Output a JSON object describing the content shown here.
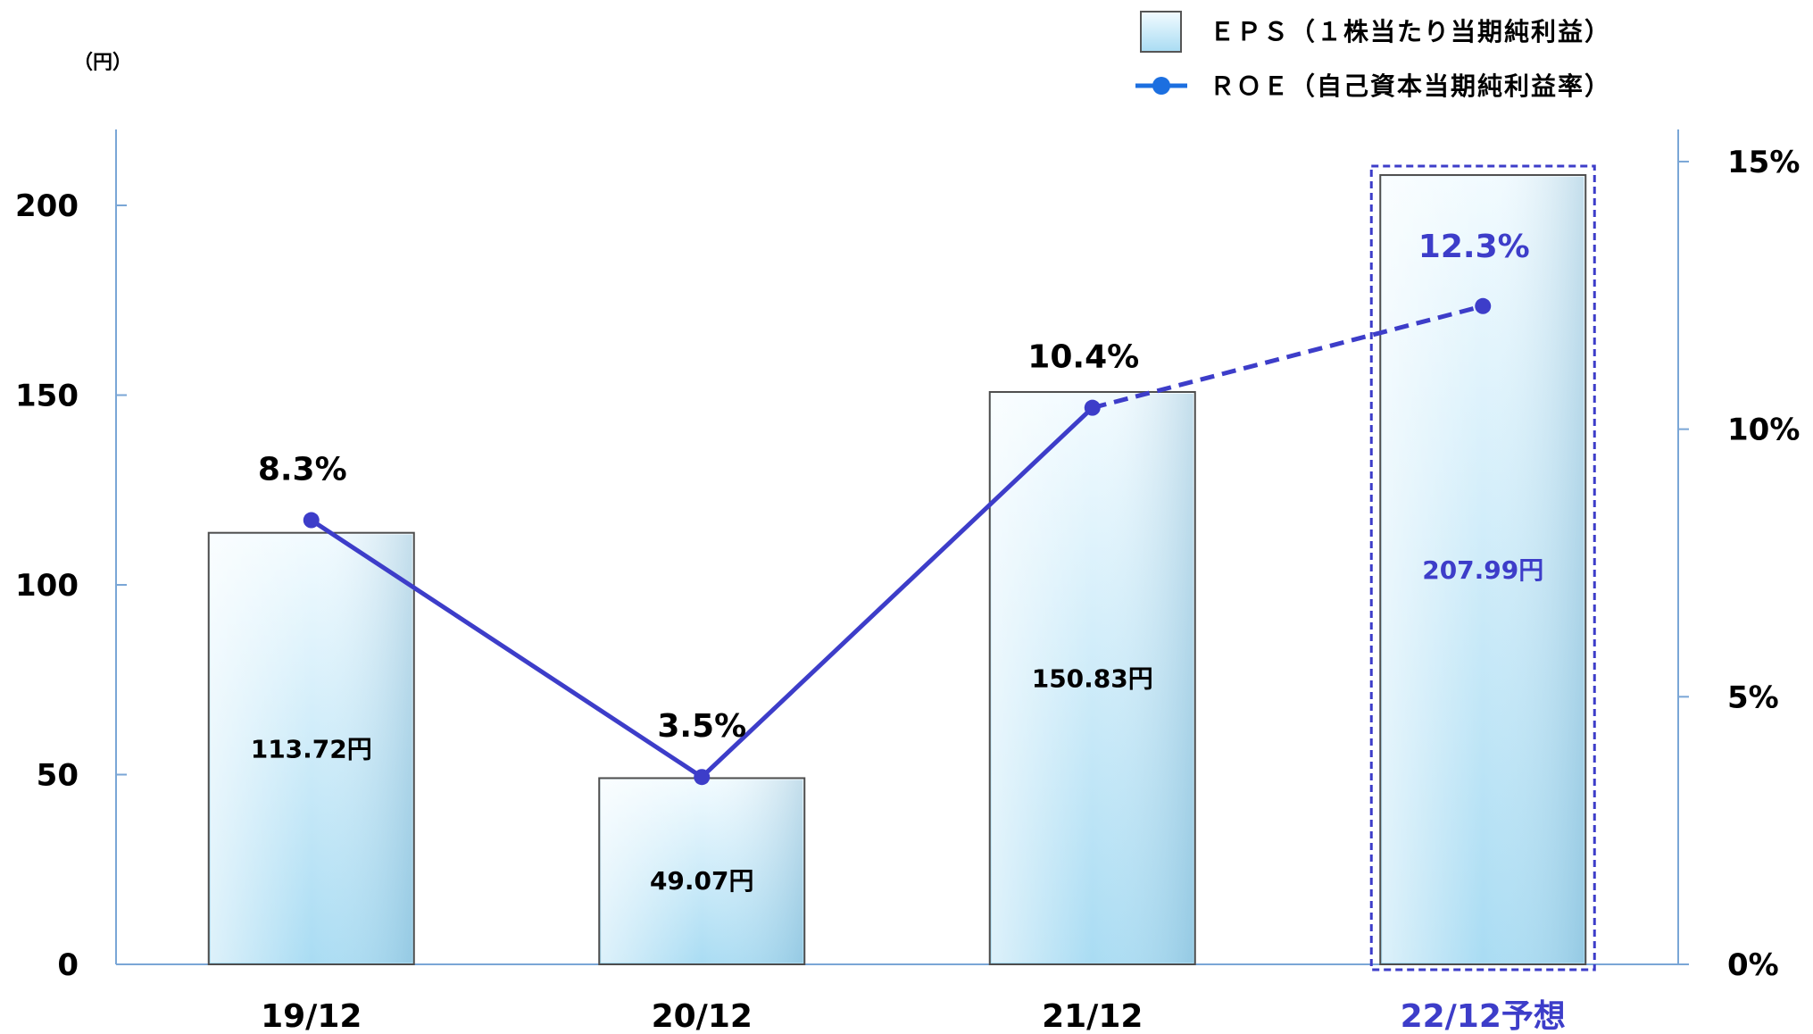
{
  "chart_data": {
    "type": "bar",
    "categories": [
      "19/12",
      "20/12",
      "21/12",
      "22/12予想"
    ],
    "y_unit_label": "（円）",
    "ylim": [
      0,
      220
    ],
    "yticks": [
      "0",
      "50",
      "100",
      "150",
      "200"
    ],
    "y2lim": [
      0,
      15.6
    ],
    "y2ticks": [
      "0%",
      "5%",
      "10%",
      "15%"
    ],
    "series": [
      {
        "name": "ＥＰＳ（１株当たり当期純利益）",
        "kind": "bar",
        "values": [
          113.72,
          49.07,
          150.83,
          207.99
        ],
        "labels": [
          "113.72円",
          "49.07円",
          "150.83円",
          "207.99円"
        ]
      },
      {
        "name": "ＲＯＥ（自己資本当期純利益率）",
        "kind": "line",
        "axis": "right",
        "values": [
          8.3,
          3.5,
          10.4,
          12.3
        ],
        "labels": [
          "8.3%",
          "3.5%",
          "10.4%",
          "12.3%"
        ]
      }
    ],
    "forecast_index": 3,
    "colors": {
      "bar_top": "#e8f6fd",
      "bar_bottom": "#a9dcf3",
      "line": "#3d3dc9",
      "forecast_text": "#3d3dc9",
      "axis": "#7aa6d6"
    },
    "grid": false,
    "legend_position": "top-right"
  }
}
